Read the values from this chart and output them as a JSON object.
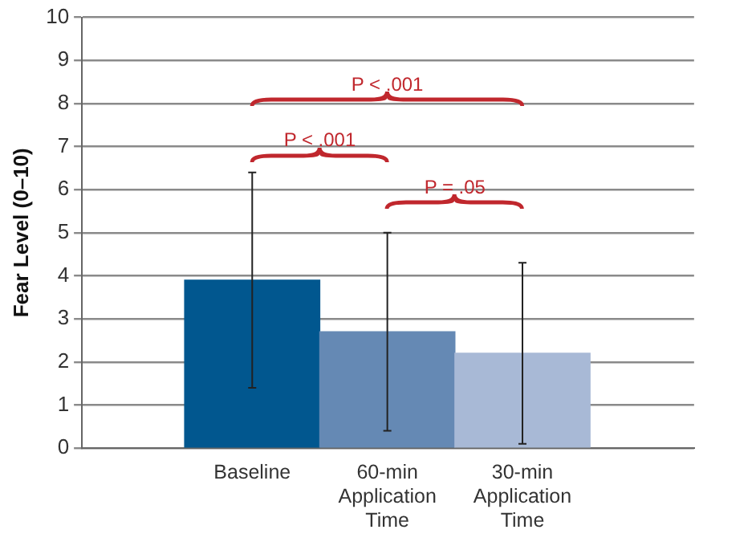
{
  "chart_data": {
    "type": "bar",
    "ylabel": "Fear Level (0–10)",
    "categories": [
      "Baseline",
      "60-min Application Time",
      "30-min Application Time"
    ],
    "values": [
      3.9,
      2.7,
      2.2
    ],
    "colors": [
      "#01578f",
      "#6589b4",
      "#a8b9d6"
    ],
    "errors": [
      [
        1.4,
        6.4
      ],
      [
        0.4,
        5.0
      ],
      [
        0.1,
        4.3
      ]
    ],
    "ylim": [
      0,
      10
    ],
    "yticks": [
      0,
      1,
      2,
      3,
      4,
      5,
      6,
      7,
      8,
      9,
      10
    ],
    "grid": "y",
    "legend": false,
    "annotations": [
      "P < .001",
      "P < .001",
      "P = .05"
    ]
  }
}
